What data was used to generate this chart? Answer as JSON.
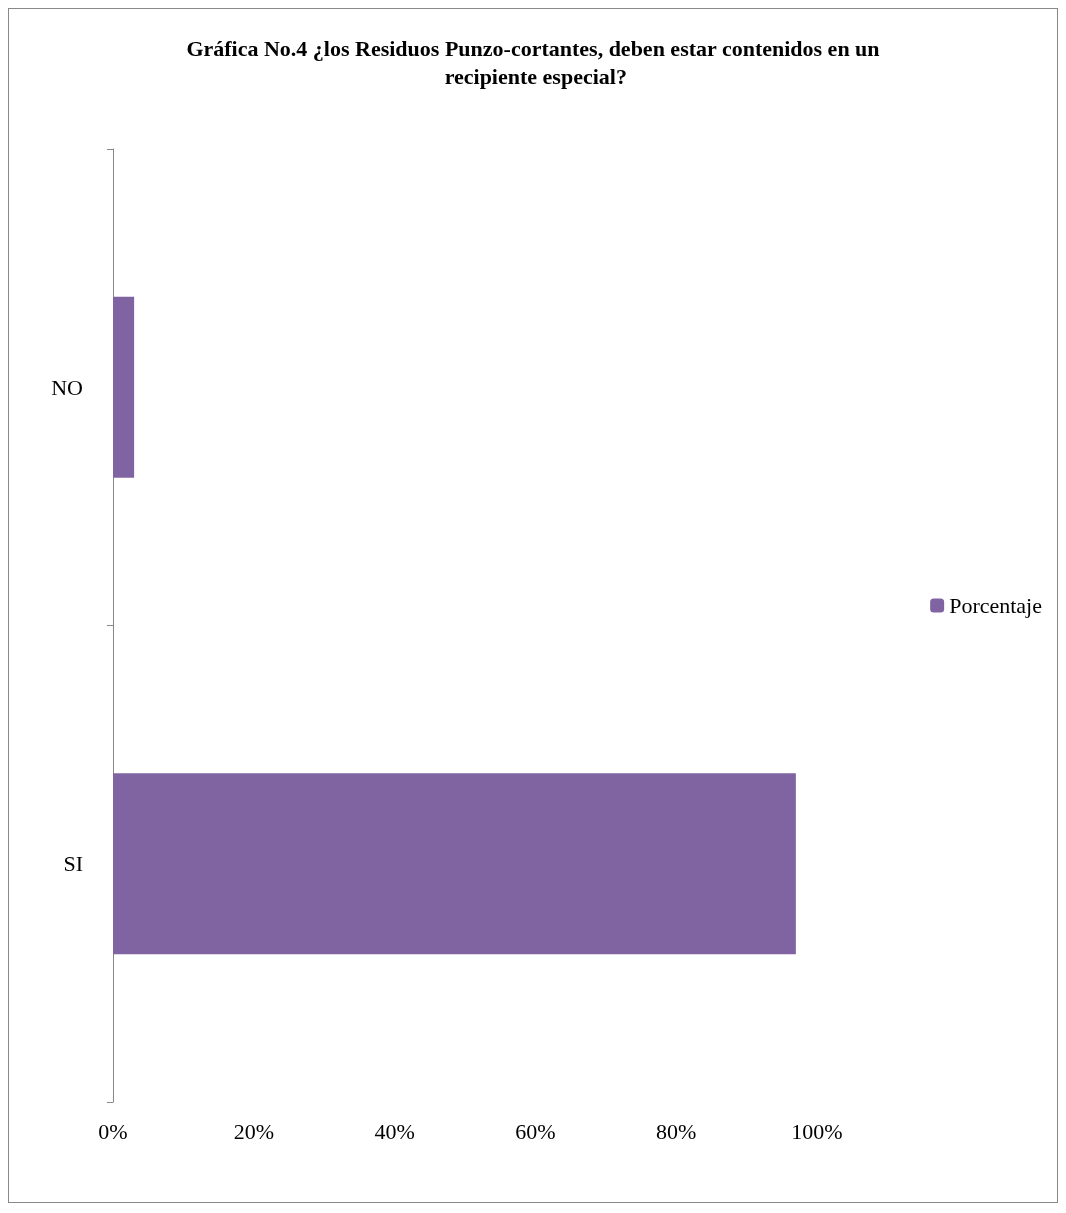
{
  "chart_data": {
    "type": "bar",
    "orientation": "horizontal",
    "title": "Gráfica No.4 ¿los Residuos Punzo-cortantes, deben estar contenidos en un recipiente especial?",
    "categories": [
      "NO",
      "SI"
    ],
    "series": [
      {
        "name": "Porcentaje",
        "color": "#8064a2",
        "values": [
          3,
          97
        ]
      }
    ],
    "xlim": [
      0,
      100
    ],
    "xticks": [
      {
        "value": 0,
        "label": "0%"
      },
      {
        "value": 20,
        "label": "20%"
      },
      {
        "value": 40,
        "label": "40%"
      },
      {
        "value": 60,
        "label": "60%"
      },
      {
        "value": 80,
        "label": "80%"
      },
      {
        "value": 100,
        "label": "100%"
      }
    ],
    "grid": false,
    "legend": "right"
  }
}
